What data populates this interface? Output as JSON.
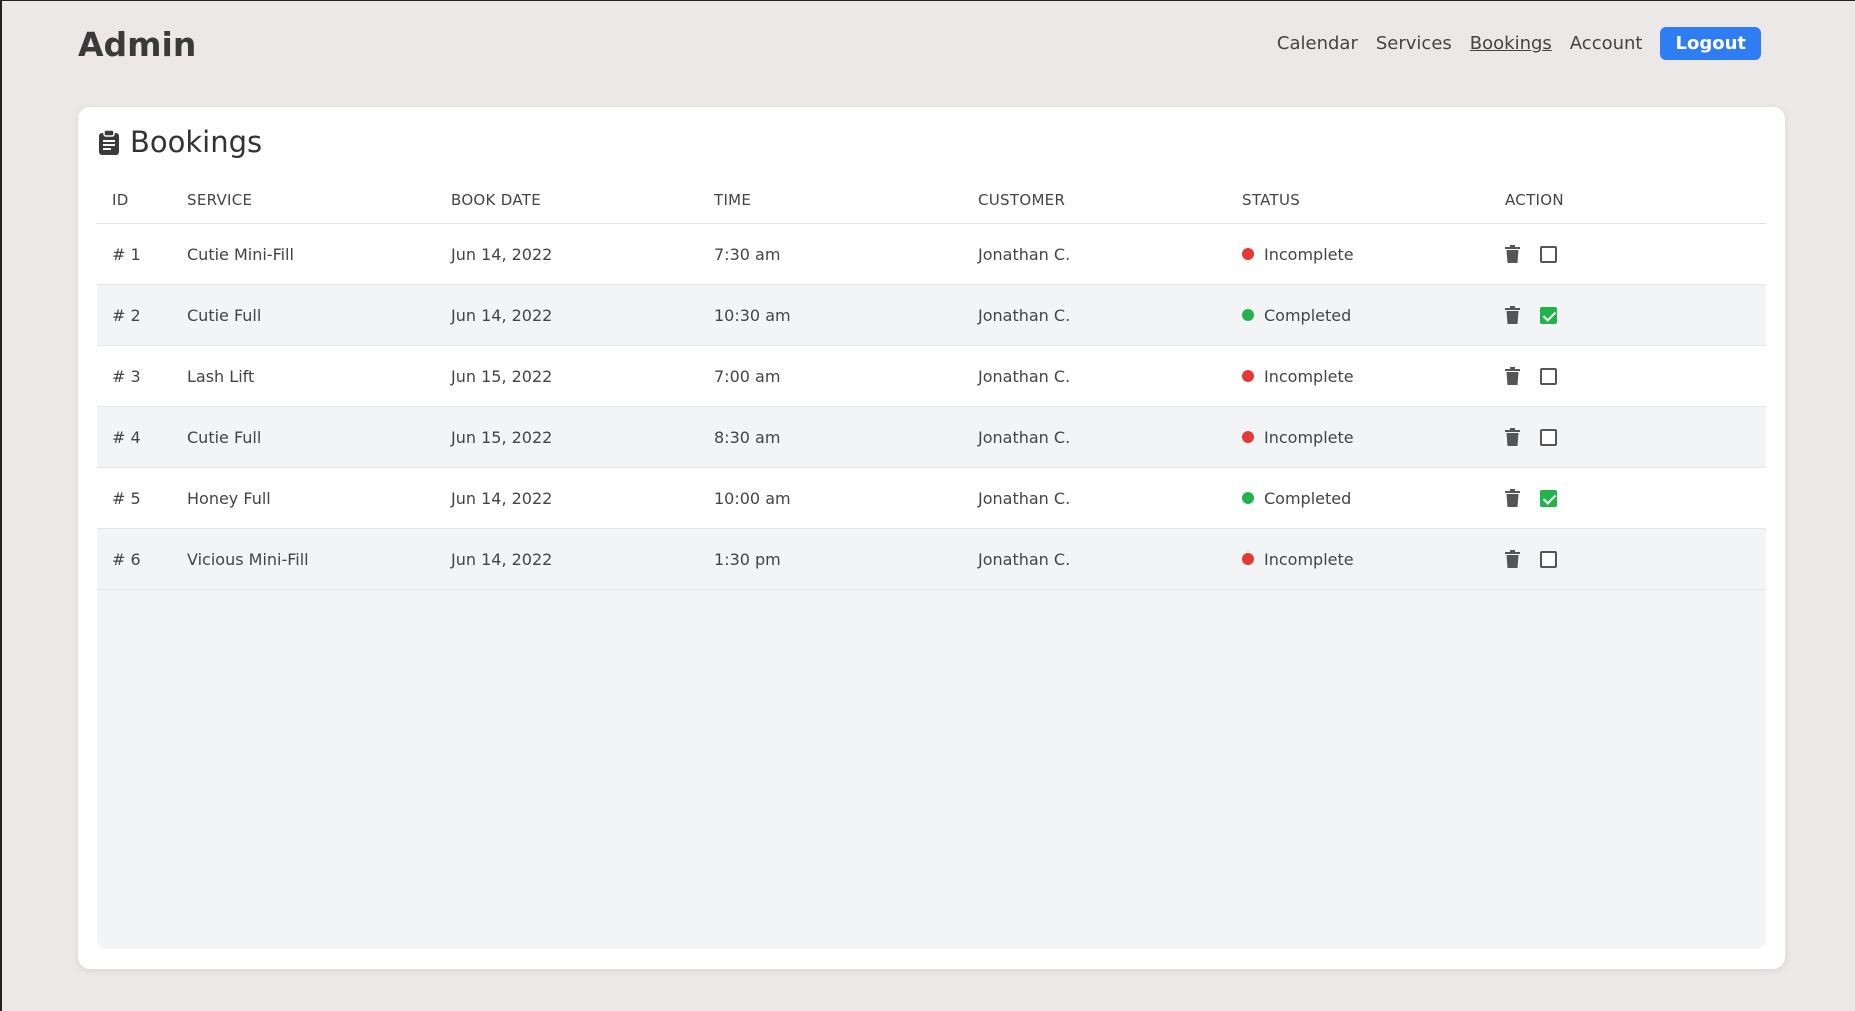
{
  "header": {
    "brand": "Admin",
    "nav": [
      {
        "label": "Calendar",
        "active": false
      },
      {
        "label": "Services",
        "active": false
      },
      {
        "label": "Bookings",
        "active": true
      },
      {
        "label": "Account",
        "active": false
      }
    ],
    "logout_label": "Logout"
  },
  "card": {
    "title": "Bookings",
    "title_icon": "clipboard-icon"
  },
  "table": {
    "columns": [
      "ID",
      "SERVICE",
      "BOOK DATE",
      "TIME",
      "CUSTOMER",
      "STATUS",
      "ACTION"
    ],
    "rows": [
      {
        "id": "# 1",
        "service": "Cutie Mini-Fill",
        "date": "Jun 14, 2022",
        "time": "7:30 am",
        "customer": "Jonathan C.",
        "status": "Incomplete",
        "checked": false
      },
      {
        "id": "# 2",
        "service": "Cutie Full",
        "date": "Jun 14, 2022",
        "time": "10:30 am",
        "customer": "Jonathan C.",
        "status": "Completed",
        "checked": true
      },
      {
        "id": "# 3",
        "service": "Lash Lift",
        "date": "Jun 15, 2022",
        "time": "7:00 am",
        "customer": "Jonathan C.",
        "status": "Incomplete",
        "checked": false
      },
      {
        "id": "# 4",
        "service": "Cutie Full",
        "date": "Jun 15, 2022",
        "time": "8:30 am",
        "customer": "Jonathan C.",
        "status": "Incomplete",
        "checked": false
      },
      {
        "id": "# 5",
        "service": "Honey Full",
        "date": "Jun 14, 2022",
        "time": "10:00 am",
        "customer": "Jonathan C.",
        "status": "Completed",
        "checked": true
      },
      {
        "id": "# 6",
        "service": "Vicious Mini-Fill",
        "date": "Jun 14, 2022",
        "time": "1:30 pm",
        "customer": "Jonathan C.",
        "status": "Incomplete",
        "checked": false
      }
    ]
  },
  "colors": {
    "accent": "#2f7df2",
    "incomplete": "#e53935",
    "completed": "#22b34c"
  }
}
